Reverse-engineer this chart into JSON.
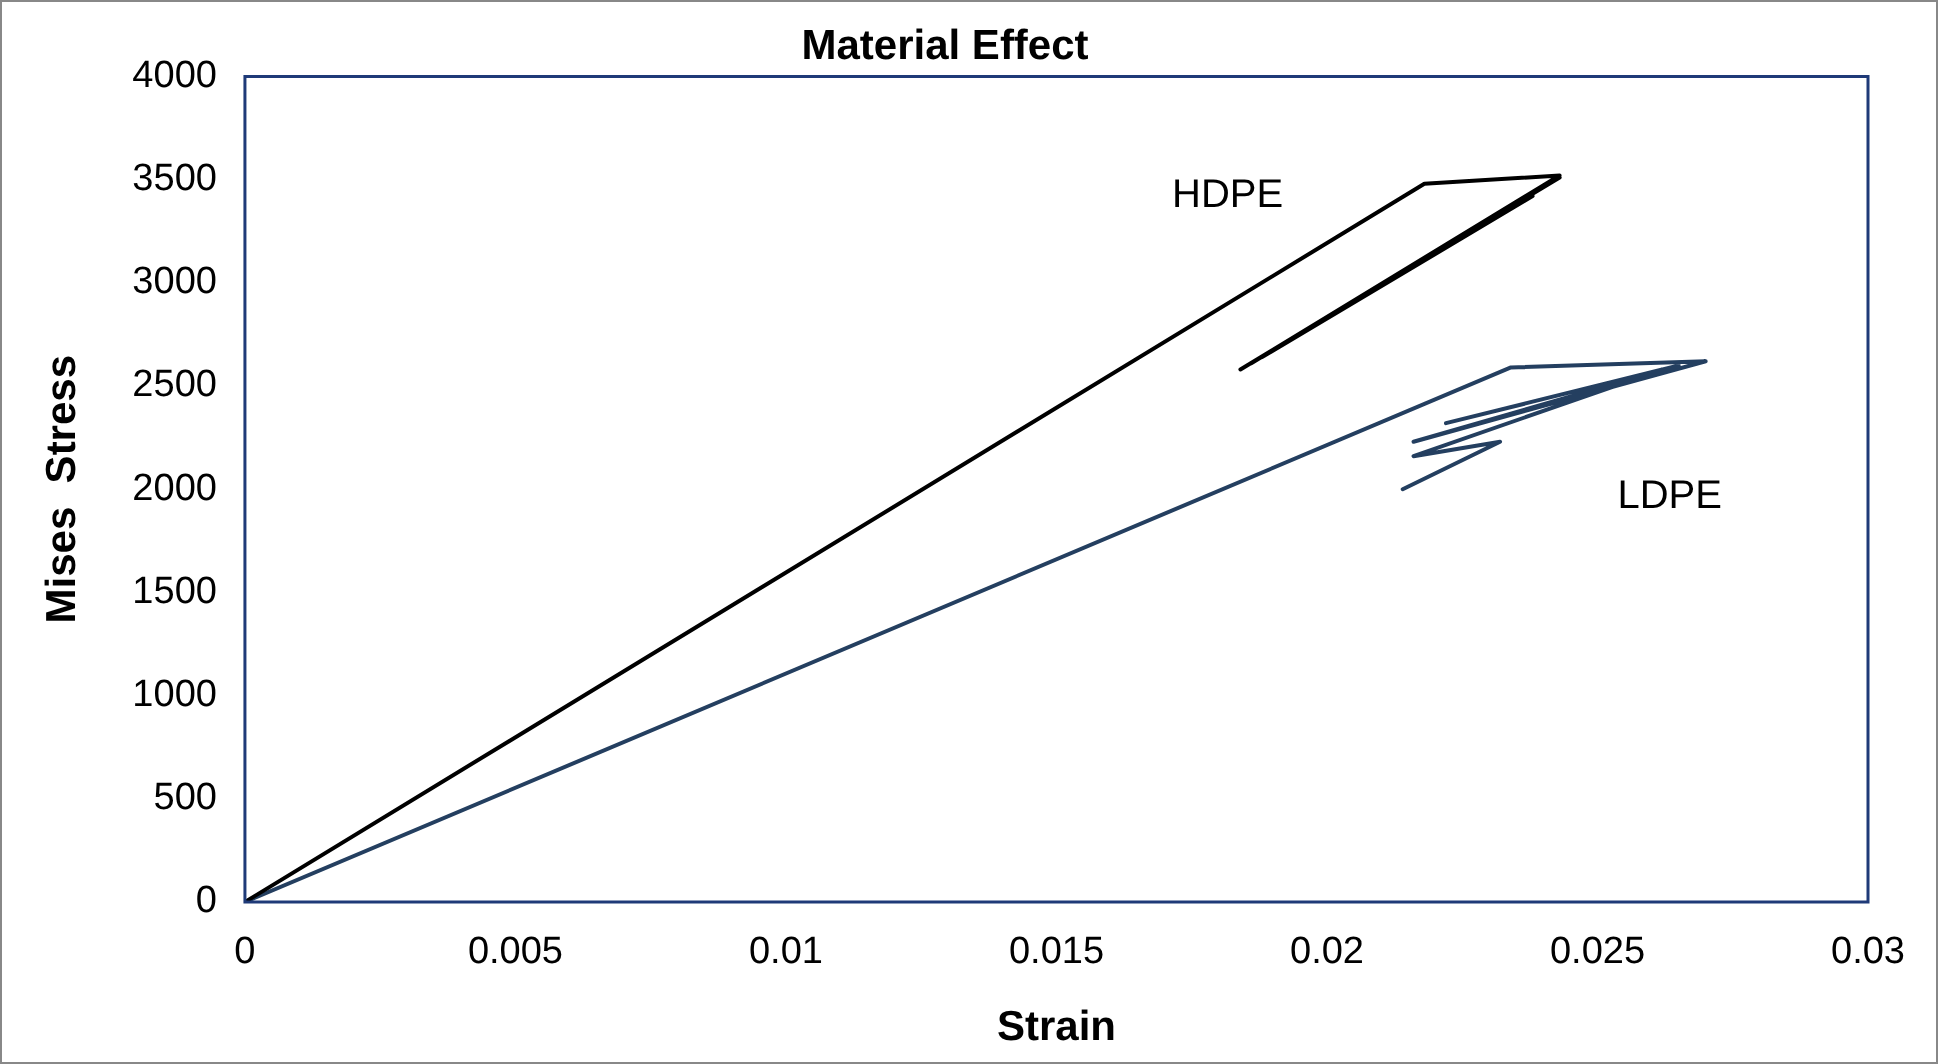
{
  "chart_data": {
    "type": "line",
    "title": "Material Effect",
    "xlabel": "Strain",
    "ylabel": "Mises  Stress",
    "xlim": [
      0,
      0.03
    ],
    "xticks": [
      0,
      0.005,
      0.01,
      0.015,
      0.02,
      0.025,
      0.03
    ],
    "ylim": [
      0,
      4000
    ],
    "yticks": [
      0,
      500,
      1000,
      1500,
      2000,
      2500,
      3000,
      3500,
      4000
    ],
    "grid": false,
    "legend": false,
    "marker": "none",
    "line_style": "solid",
    "series": [
      {
        "name": "HDPE",
        "color": "#000000",
        "x": [
          0,
          0.0218,
          0.0243,
          0.0184,
          0.0243,
          0.0186,
          0.0241,
          0.0188,
          0.0238
        ],
        "values": [
          0,
          3480,
          3520,
          2580,
          3510,
          2610,
          3480,
          2640,
          3420
        ]
      },
      {
        "name": "LDPE",
        "color": "#243f60",
        "x": [
          0,
          0.0234,
          0.027,
          0.0216,
          0.0265,
          0.0222,
          0.0262,
          0.0216,
          0.0232,
          0.0214
        ],
        "values": [
          0,
          2590,
          2620,
          2230,
          2600,
          2320,
          2580,
          2160,
          2230,
          2000
        ]
      }
    ]
  }
}
